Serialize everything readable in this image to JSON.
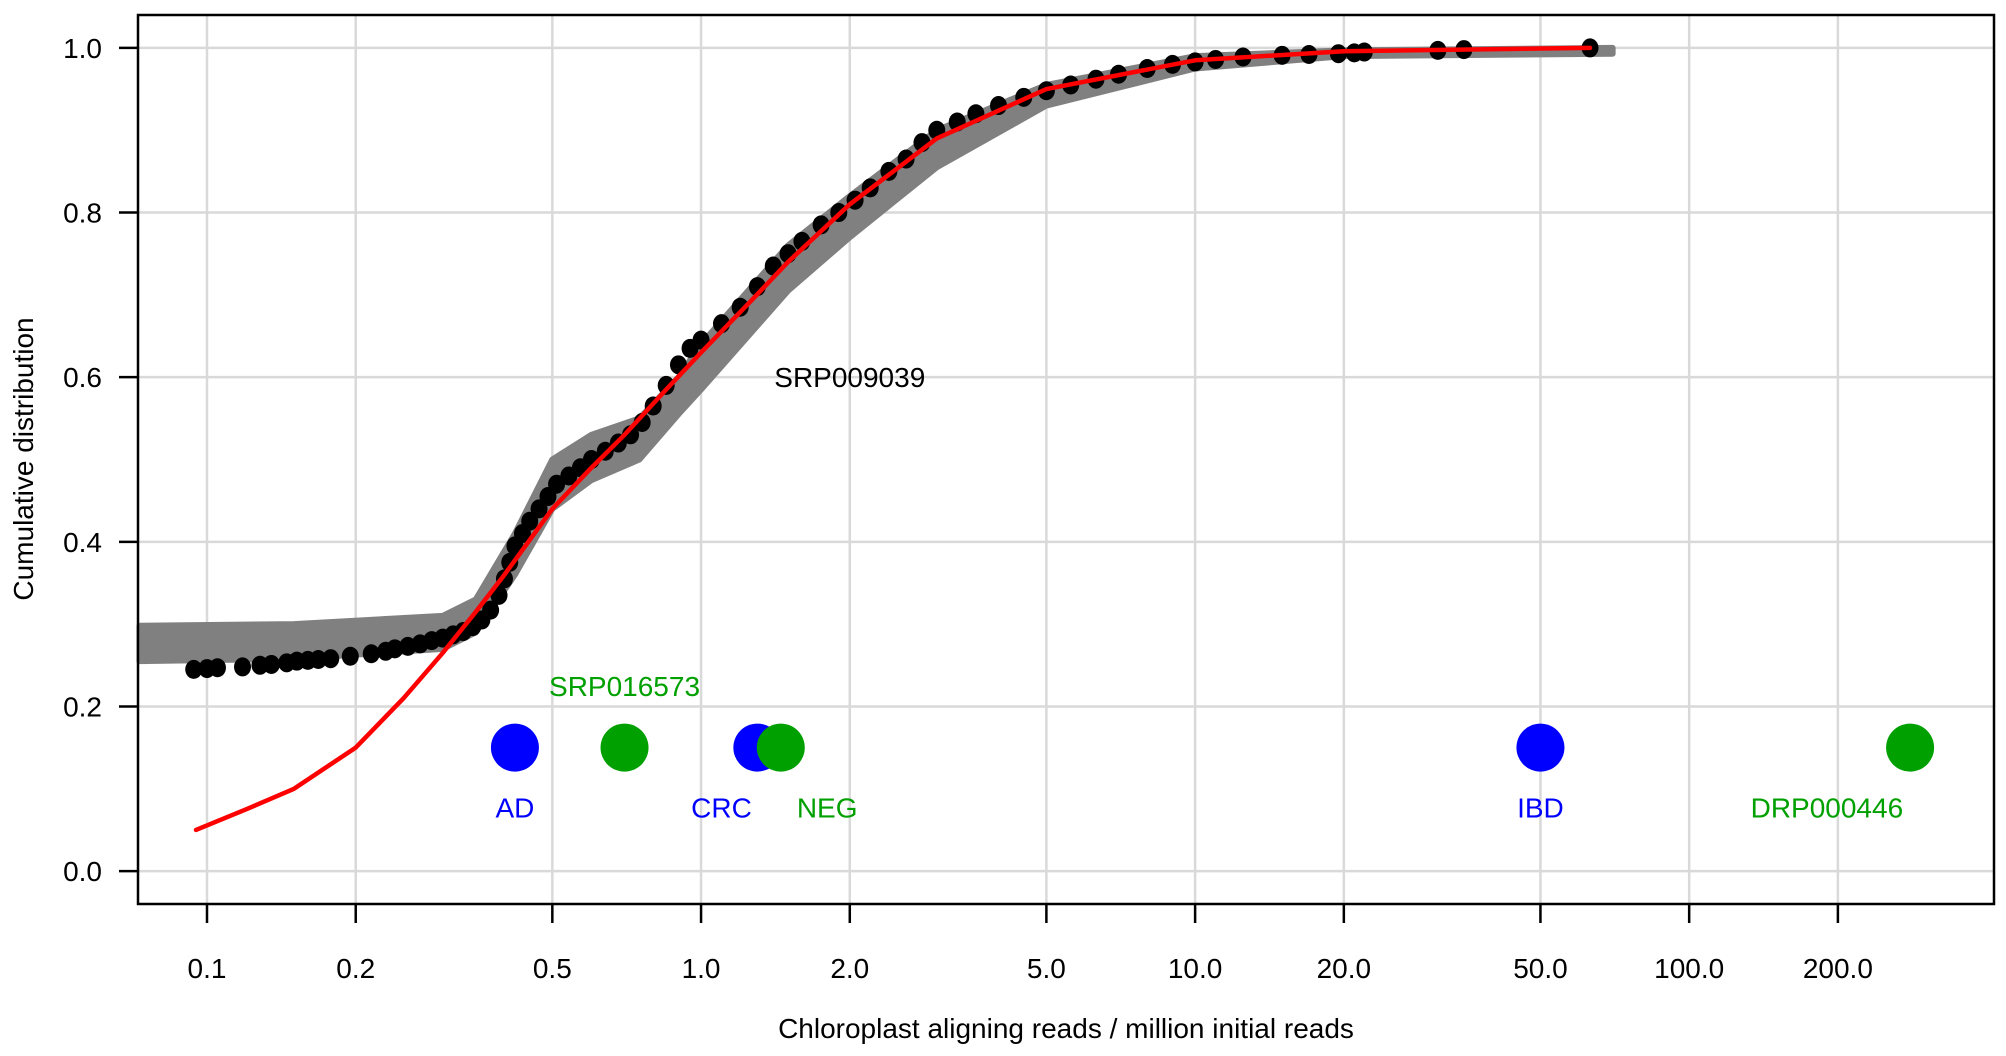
{
  "chart_data": {
    "type": "scatter",
    "xlabel": "Chloroplast aligning reads / million initial reads",
    "ylabel": "Cumulative distribution",
    "xscale": "log",
    "xlim": [
      0.0725,
      414
    ],
    "ylim": [
      -0.04,
      1.04
    ],
    "grid": true,
    "xticks": [
      0.1,
      0.2,
      0.5,
      1.0,
      2.0,
      5.0,
      10.0,
      20.0,
      50.0,
      100.0,
      200.0
    ],
    "xtick_labels": [
      "0.1",
      "0.2",
      "0.5",
      "1.0",
      "2.0",
      "5.0",
      "10.0",
      "20.0",
      "50.0",
      "100.0",
      "200.0"
    ],
    "yticks": [
      0.0,
      0.2,
      0.4,
      0.6,
      0.8,
      1.0
    ],
    "ytick_labels": [
      "0.0",
      "0.2",
      "0.4",
      "0.6",
      "0.8",
      "1.0"
    ],
    "band": {
      "color": "#808080",
      "x": [
        0.073,
        0.15,
        0.3,
        0.35,
        0.42,
        0.5,
        0.6,
        0.75,
        0.9,
        1.0,
        1.5,
        2.0,
        3.0,
        5.0,
        10.0,
        20.0,
        70.0
      ],
      "lower": [
        0.255,
        0.258,
        0.27,
        0.29,
        0.36,
        0.44,
        0.475,
        0.5,
        0.555,
        0.585,
        0.705,
        0.77,
        0.855,
        0.93,
        0.975,
        0.99,
        0.993
      ],
      "upper": [
        0.298,
        0.3,
        0.31,
        0.33,
        0.41,
        0.5,
        0.53,
        0.55,
        0.6,
        0.64,
        0.76,
        0.82,
        0.9,
        0.955,
        0.99,
        0.997,
        1.0
      ]
    },
    "ecdf_series": {
      "name": "SRP009039",
      "color": "#000000",
      "points": [
        [
          0.094,
          0.245
        ],
        [
          0.1,
          0.246
        ],
        [
          0.105,
          0.247
        ],
        [
          0.118,
          0.248
        ],
        [
          0.128,
          0.25
        ],
        [
          0.135,
          0.251
        ],
        [
          0.145,
          0.253
        ],
        [
          0.152,
          0.255
        ],
        [
          0.16,
          0.256
        ],
        [
          0.168,
          0.257
        ],
        [
          0.178,
          0.258
        ],
        [
          0.195,
          0.261
        ],
        [
          0.215,
          0.264
        ],
        [
          0.23,
          0.267
        ],
        [
          0.24,
          0.27
        ],
        [
          0.255,
          0.273
        ],
        [
          0.27,
          0.276
        ],
        [
          0.285,
          0.28
        ],
        [
          0.3,
          0.283
        ],
        [
          0.315,
          0.287
        ],
        [
          0.33,
          0.291
        ],
        [
          0.345,
          0.297
        ],
        [
          0.36,
          0.305
        ],
        [
          0.375,
          0.317
        ],
        [
          0.39,
          0.335
        ],
        [
          0.4,
          0.355
        ],
        [
          0.41,
          0.375
        ],
        [
          0.42,
          0.395
        ],
        [
          0.435,
          0.41
        ],
        [
          0.45,
          0.425
        ],
        [
          0.47,
          0.44
        ],
        [
          0.49,
          0.455
        ],
        [
          0.51,
          0.47
        ],
        [
          0.54,
          0.48
        ],
        [
          0.57,
          0.49
        ],
        [
          0.6,
          0.5
        ],
        [
          0.64,
          0.51
        ],
        [
          0.68,
          0.52
        ],
        [
          0.72,
          0.53
        ],
        [
          0.76,
          0.545
        ],
        [
          0.8,
          0.565
        ],
        [
          0.85,
          0.59
        ],
        [
          0.9,
          0.615
        ],
        [
          0.95,
          0.635
        ],
        [
          1.0,
          0.645
        ],
        [
          1.1,
          0.665
        ],
        [
          1.2,
          0.685
        ],
        [
          1.3,
          0.71
        ],
        [
          1.4,
          0.735
        ],
        [
          1.5,
          0.75
        ],
        [
          1.6,
          0.765
        ],
        [
          1.75,
          0.785
        ],
        [
          1.9,
          0.8
        ],
        [
          2.05,
          0.815
        ],
        [
          2.2,
          0.83
        ],
        [
          2.4,
          0.85
        ],
        [
          2.6,
          0.865
        ],
        [
          2.8,
          0.885
        ],
        [
          3.0,
          0.9
        ],
        [
          3.3,
          0.91
        ],
        [
          3.6,
          0.92
        ],
        [
          4.0,
          0.93
        ],
        [
          4.5,
          0.94
        ],
        [
          5.0,
          0.948
        ],
        [
          5.6,
          0.955
        ],
        [
          6.3,
          0.962
        ],
        [
          7.0,
          0.968
        ],
        [
          8.0,
          0.975
        ],
        [
          9.0,
          0.98
        ],
        [
          10.0,
          0.983
        ],
        [
          11.0,
          0.986
        ],
        [
          12.5,
          0.989
        ],
        [
          15.0,
          0.991
        ],
        [
          17.0,
          0.992
        ],
        [
          19.5,
          0.993
        ],
        [
          21.0,
          0.994
        ],
        [
          22.0,
          0.995
        ],
        [
          31.0,
          0.997
        ],
        [
          35.0,
          0.998
        ],
        [
          63.0,
          1.0
        ]
      ]
    },
    "fit_line": {
      "color": "#ff0000",
      "x": [
        0.095,
        0.12,
        0.15,
        0.2,
        0.25,
        0.3,
        0.35,
        0.4,
        0.5,
        0.6,
        0.7,
        0.85,
        1.0,
        1.25,
        1.5,
        2.0,
        3.0,
        5.0,
        10.0,
        20.0,
        63.0
      ],
      "y": [
        0.05,
        0.075,
        0.1,
        0.15,
        0.21,
        0.265,
        0.315,
        0.36,
        0.44,
        0.49,
        0.53,
        0.585,
        0.63,
        0.69,
        0.74,
        0.81,
        0.89,
        0.95,
        0.985,
        0.996,
        1.0
      ]
    },
    "highlight_points": [
      {
        "label": "AD",
        "x": 0.42,
        "y": 0.15,
        "color": "#0000ff",
        "label_x": 0.42,
        "label_y": 0.077
      },
      {
        "label": "SRP016573",
        "x": 0.7,
        "y": 0.15,
        "color": "#00a000",
        "label_x": 0.7,
        "label_y": 0.225
      },
      {
        "label": "CRC",
        "x": 1.3,
        "y": 0.15,
        "color": "#0000ff",
        "label_x": 1.1,
        "label_y": 0.077
      },
      {
        "label": "NEG",
        "x": 1.45,
        "y": 0.15,
        "color": "#00a000",
        "label_x": 1.8,
        "label_y": 0.077
      },
      {
        "label": "IBD",
        "x": 50.0,
        "y": 0.15,
        "color": "#0000ff",
        "label_x": 50.0,
        "label_y": 0.077
      },
      {
        "label": "DRP000446",
        "x": 280.0,
        "y": 0.15,
        "color": "#00a000",
        "label_x": 190.0,
        "label_y": 0.077
      }
    ],
    "annotations": [
      {
        "text": "SRP009039",
        "x": 2.0,
        "y": 0.6,
        "color": "#000000"
      }
    ]
  }
}
